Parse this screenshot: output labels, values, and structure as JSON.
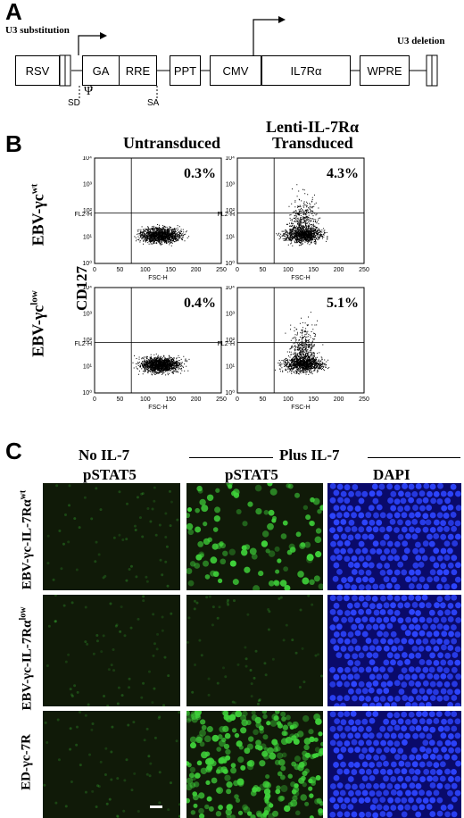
{
  "panelA": {
    "letter": "A",
    "u3_substitution": "U3 substitution",
    "u3_deletion": "U3 deletion",
    "elements": [
      "RSV",
      "GA",
      "RRE",
      "PPT",
      "CMV",
      "IL7Rα",
      "WPRE"
    ],
    "sd": "SD",
    "psi": "Ψ",
    "sa": "SA"
  },
  "panelB": {
    "letter": "B",
    "col1": "Untransduced",
    "col2_line1": "Lenti-IL-7Rα",
    "col2_line2": "Transduced",
    "row1_label": "EBV-γc",
    "row1_sup": "wt",
    "row2_label": "EBV-γc",
    "row2_sup": "low",
    "ylabel": "CD127",
    "plot_ylabel": "FL2-H",
    "plot_xlabel": "FSC-H",
    "xticks": [
      "0",
      "50",
      "100",
      "150",
      "200",
      "250"
    ],
    "yticks": [
      "10⁰",
      "10¹",
      "10²",
      "10³",
      "10⁴"
    ],
    "percentages": [
      "0.3%",
      "4.3%",
      "0.4%",
      "5.1%"
    ]
  },
  "panelC": {
    "letter": "C",
    "no_il7": "No IL-7",
    "plus_il7": "Plus IL-7",
    "col_pstat5_a": "pSTAT5",
    "col_pstat5_b": "pSTAT5",
    "col_dapi": "DAPI",
    "row1_label": "EBV-γc-IL-7Rα",
    "row1_sup": "wt",
    "row2_label": "EBV-γc-IL-7Rα",
    "row2_sup": "low",
    "row3_label": "ED-γc-7R"
  },
  "colors": {
    "green_dim": "#101a08",
    "green_bright": "#3fd23a",
    "dapi_bg": "#0a0a6a",
    "dapi_cell": "#2d45ff"
  }
}
